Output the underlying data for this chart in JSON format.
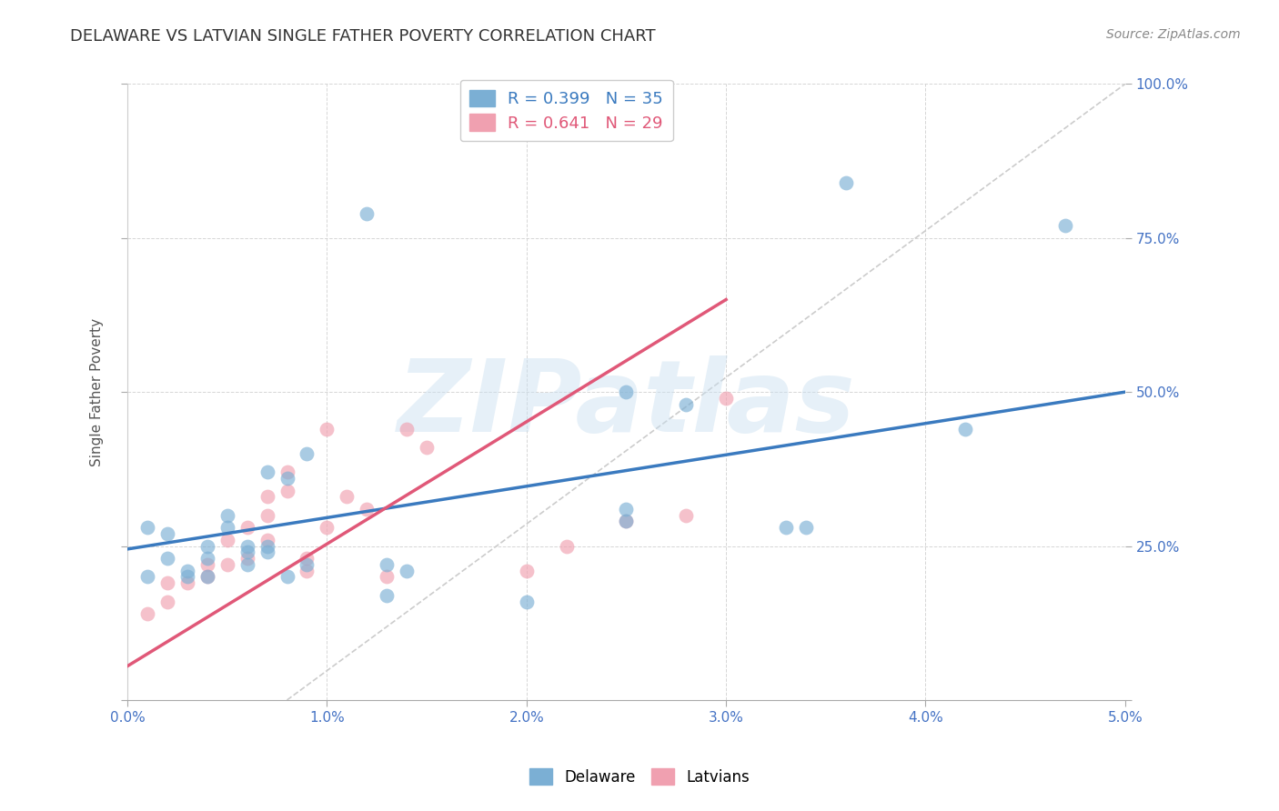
{
  "title": "DELAWARE VS LATVIAN SINGLE FATHER POVERTY CORRELATION CHART",
  "source": "Source: ZipAtlas.com",
  "ylabel": "Single Father Poverty",
  "xlim": [
    0.0,
    0.05
  ],
  "ylim": [
    0.0,
    1.0
  ],
  "xticks": [
    0.0,
    0.01,
    0.02,
    0.03,
    0.04,
    0.05
  ],
  "xticklabels": [
    "0.0%",
    "1.0%",
    "2.0%",
    "3.0%",
    "4.0%",
    "5.0%"
  ],
  "yticks": [
    0.0,
    0.25,
    0.5,
    0.75,
    1.0
  ],
  "yticklabels": [
    "",
    "25.0%",
    "50.0%",
    "75.0%",
    "100.0%"
  ],
  "delaware_R": 0.399,
  "delaware_N": 35,
  "latvian_R": 0.641,
  "latvian_N": 29,
  "delaware_color": "#7bafd4",
  "latvian_color": "#f0a0b0",
  "delaware_line_color": "#3a7abf",
  "latvian_line_color": "#e05878",
  "legend_label_delaware": "Delaware",
  "legend_label_latvian": "Latvians",
  "watermark": "ZIPatlas",
  "delaware_x": [
    0.001,
    0.001,
    0.002,
    0.002,
    0.003,
    0.003,
    0.004,
    0.004,
    0.004,
    0.005,
    0.005,
    0.006,
    0.006,
    0.006,
    0.007,
    0.007,
    0.007,
    0.008,
    0.008,
    0.009,
    0.009,
    0.012,
    0.013,
    0.013,
    0.014,
    0.02,
    0.025,
    0.025,
    0.028,
    0.033,
    0.034,
    0.036,
    0.042,
    0.047,
    0.025
  ],
  "delaware_y": [
    0.2,
    0.28,
    0.23,
    0.27,
    0.2,
    0.21,
    0.2,
    0.23,
    0.25,
    0.3,
    0.28,
    0.24,
    0.25,
    0.22,
    0.25,
    0.24,
    0.37,
    0.36,
    0.2,
    0.22,
    0.4,
    0.79,
    0.22,
    0.17,
    0.21,
    0.16,
    0.29,
    0.31,
    0.48,
    0.28,
    0.28,
    0.84,
    0.44,
    0.77,
    0.5
  ],
  "latvian_x": [
    0.001,
    0.002,
    0.002,
    0.003,
    0.004,
    0.004,
    0.005,
    0.005,
    0.006,
    0.006,
    0.007,
    0.007,
    0.007,
    0.008,
    0.008,
    0.009,
    0.009,
    0.01,
    0.01,
    0.011,
    0.012,
    0.013,
    0.014,
    0.015,
    0.02,
    0.022,
    0.025,
    0.028,
    0.03
  ],
  "latvian_y": [
    0.14,
    0.16,
    0.19,
    0.19,
    0.2,
    0.22,
    0.22,
    0.26,
    0.23,
    0.28,
    0.26,
    0.3,
    0.33,
    0.34,
    0.37,
    0.21,
    0.23,
    0.28,
    0.44,
    0.33,
    0.31,
    0.2,
    0.44,
    0.41,
    0.21,
    0.25,
    0.29,
    0.3,
    0.49
  ],
  "delaware_trendline": [
    [
      0.0,
      0.05
    ],
    [
      0.245,
      0.5
    ]
  ],
  "latvian_trendline": [
    [
      0.0,
      0.03
    ],
    [
      0.055,
      0.65
    ]
  ],
  "background_color": "#ffffff",
  "grid_color": "#cccccc",
  "title_color": "#333333",
  "tick_color": "#4472c4"
}
